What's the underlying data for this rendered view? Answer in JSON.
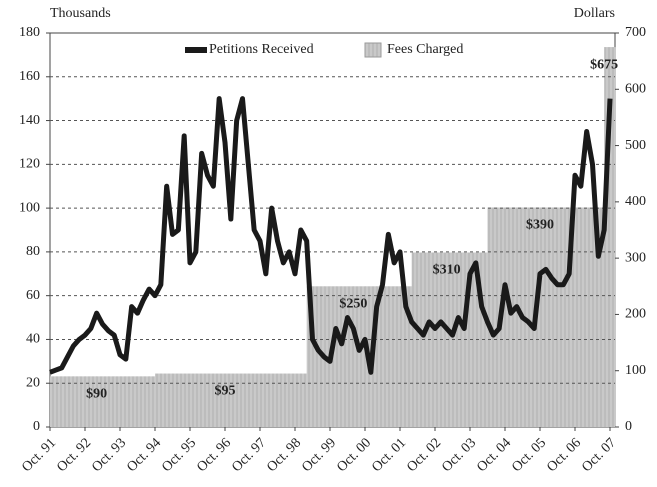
{
  "chart_data": {
    "type": "line",
    "y_label": "Thousands",
    "y2_label": "Dollars",
    "categories": [
      "Oct. 91",
      null,
      null,
      null,
      null,
      null,
      "Oct. 92",
      null,
      null,
      null,
      null,
      null,
      "Oct. 93",
      null,
      null,
      null,
      null,
      null,
      "Oct. 94",
      null,
      null,
      null,
      null,
      null,
      "Oct. 95",
      null,
      null,
      null,
      null,
      null,
      "Oct. 96",
      null,
      null,
      null,
      null,
      null,
      "Oct. 97",
      null,
      null,
      null,
      null,
      null,
      "Oct. 98",
      null,
      null,
      null,
      null,
      null,
      "Oct. 99",
      null,
      null,
      null,
      null,
      null,
      "Oct. 00",
      null,
      null,
      null,
      null,
      null,
      "Oct. 01",
      null,
      null,
      null,
      null,
      null,
      "Oct. 02",
      null,
      null,
      null,
      null,
      null,
      "Oct. 03",
      null,
      null,
      null,
      null,
      null,
      "Oct. 04",
      null,
      null,
      null,
      null,
      null,
      "Oct. 05",
      null,
      null,
      null,
      null,
      null,
      "Oct. 06",
      null,
      null,
      null,
      null,
      null,
      "Oct. 07"
    ],
    "series": [
      {
        "name": "Petitions Received",
        "color": "#1a1a1a",
        "type": "line",
        "values": [
          25,
          26,
          27,
          32,
          37,
          40,
          42,
          45,
          52,
          47,
          44,
          42,
          33,
          31,
          55,
          52,
          58,
          63,
          60,
          65,
          110,
          88,
          90,
          133,
          75,
          80,
          125,
          115,
          110,
          150,
          130,
          95,
          140,
          150,
          120,
          90,
          85,
          70,
          100,
          85,
          75,
          80,
          70,
          90,
          85,
          40,
          35,
          32,
          30,
          45,
          38,
          50,
          45,
          35,
          40,
          25,
          55,
          65,
          88,
          75,
          80,
          55,
          48,
          45,
          42,
          48,
          45,
          48,
          45,
          42,
          50,
          45,
          70,
          75,
          55,
          48,
          42,
          45,
          65,
          52,
          55,
          50,
          48,
          45,
          70,
          72,
          68,
          65,
          65,
          70,
          115,
          110,
          135,
          120,
          78,
          90,
          150
        ]
      },
      {
        "name": "Fees Charged",
        "color": "#c4c4c4",
        "type": "bar",
        "axis": "y2",
        "values": [
          90,
          90,
          90,
          90,
          90,
          90,
          90,
          90,
          90,
          90,
          90,
          90,
          90,
          90,
          90,
          90,
          90,
          90,
          95,
          95,
          95,
          95,
          95,
          95,
          95,
          95,
          95,
          95,
          95,
          95,
          95,
          95,
          95,
          95,
          95,
          95,
          95,
          95,
          95,
          95,
          95,
          95,
          95,
          95,
          250,
          250,
          250,
          250,
          250,
          250,
          250,
          250,
          250,
          250,
          250,
          250,
          250,
          250,
          250,
          250,
          250,
          250,
          310,
          310,
          310,
          310,
          310,
          310,
          310,
          310,
          310,
          310,
          310,
          310,
          310,
          390,
          390,
          390,
          390,
          390,
          390,
          390,
          390,
          390,
          390,
          390,
          390,
          390,
          390,
          390,
          390,
          390,
          390,
          390,
          390,
          675,
          675
        ],
        "value_labels": [
          null,
          null,
          null,
          null,
          null,
          null,
          null,
          null,
          "$90",
          null,
          null,
          null,
          null,
          null,
          null,
          null,
          null,
          null,
          null,
          null,
          null,
          null,
          null,
          null,
          null,
          null,
          null,
          null,
          null,
          null,
          "$95",
          null,
          null,
          null,
          null,
          null,
          null,
          null,
          null,
          null,
          null,
          null,
          null,
          null,
          null,
          null,
          null,
          null,
          null,
          null,
          null,
          null,
          "$250",
          null,
          null,
          null,
          null,
          null,
          null,
          null,
          null,
          null,
          null,
          null,
          null,
          null,
          null,
          null,
          "$310",
          null,
          null,
          null,
          null,
          null,
          null,
          null,
          null,
          null,
          null,
          null,
          null,
          null,
          null,
          null,
          "$390",
          null,
          null,
          null,
          null,
          null,
          null,
          null,
          null,
          null,
          null,
          "$675",
          null
        ]
      }
    ],
    "ylim": [
      0,
      180
    ],
    "yticks": [
      0,
      20,
      40,
      60,
      80,
      100,
      120,
      140,
      160,
      180
    ],
    "y2lim": [
      0,
      700
    ],
    "y2ticks": [
      0,
      100,
      200,
      300,
      400,
      500,
      600,
      700
    ],
    "grid": true,
    "legend": "top"
  }
}
